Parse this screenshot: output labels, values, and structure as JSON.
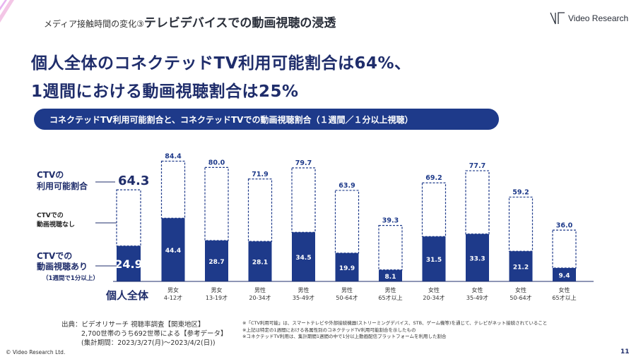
{
  "header": {
    "subtitle_prefix": "メディア接触時間の変化③",
    "subtitle_main": "テレビデバイスでの動画視聴の浸透",
    "logo_text": "Video Research"
  },
  "headline": {
    "line1": "個人全体のコネクテッドTV利用可能割合は64%、",
    "line2": "1週間における動画視聴割合は25%"
  },
  "banner": "コネクテッドTV利用可能割合と、コネクテッドTVでの動画視聴割合（１週間／１分以上視聴）",
  "legend": {
    "ctv_available_line1": "CTVの",
    "ctv_available_line2": "利用可能割合",
    "ctv_none_line1": "CTVでの",
    "ctv_none_line2": "動画視聴なし",
    "ctv_view_line1": "CTVでの",
    "ctv_view_line2": "動画視聴あり",
    "ctv_view_sub": "（1週間で1分以上）"
  },
  "individual": {
    "label": "個人全体",
    "available": "64.3",
    "viewing": "24.9"
  },
  "chart_data": {
    "type": "bar",
    "categories": [
      [
        "男女",
        "4-12才"
      ],
      [
        "男女",
        "13-19才"
      ],
      [
        "男性",
        "20-34才"
      ],
      [
        "男性",
        "35-49才"
      ],
      [
        "男性",
        "50-64才"
      ],
      [
        "男性",
        "65才以上"
      ],
      [
        "女性",
        "20-34才"
      ],
      [
        "女性",
        "35-49才"
      ],
      [
        "女性",
        "50-64才"
      ],
      [
        "女性",
        "65才以上"
      ]
    ],
    "series": [
      {
        "name": "CTVの利用可能割合",
        "values": [
          84.4,
          80.0,
          71.9,
          79.7,
          63.9,
          39.3,
          69.2,
          77.7,
          59.2,
          36.0
        ]
      },
      {
        "name": "CTVでの動画視聴あり",
        "values": [
          44.4,
          28.7,
          28.1,
          34.5,
          19.9,
          8.1,
          31.5,
          33.3,
          21.2,
          9.4
        ]
      }
    ],
    "individual_total": {
      "available": 64.3,
      "viewing": 24.9
    },
    "ylim": [
      0,
      90
    ],
    "colors": {
      "viewing": "#1e3a8a",
      "outline": "#1e3a8a"
    }
  },
  "footer": {
    "source_line1": "出典：ビデオリサーチ 視聴率調査【関東地区】",
    "source_line2": "2,700世帯のうち692世帯による【参考データ】",
    "source_line3": "(集計期間：2023/3/27(月)〜2023/4/2(日))",
    "note1": "※「CTV利用可能」は、スマートテレビや外部接続機器(ストリーミングデバイス、STB、ゲーム機等)を通じて、テレビがネット接続されていること",
    "note2": "※上記は特定の1週間における各属性別のコネクテッドTV利用可能割合を示したもの",
    "note3": "※コネクテッドTV利用は、集計期間1週間の中で1分以上動画配信プラットフォームを利用した割合",
    "copyright": "© Video Research Ltd.",
    "page": "11"
  }
}
